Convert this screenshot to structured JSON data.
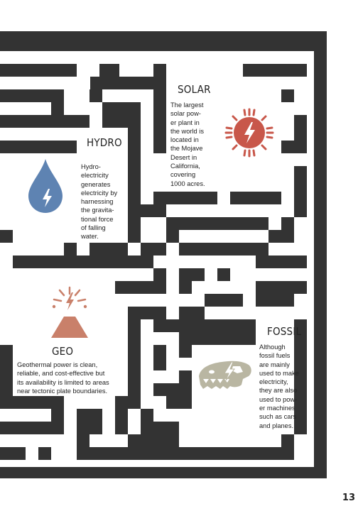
{
  "sections": {
    "solar": {
      "title": "SOLAR",
      "lines": [
        "The largest",
        "solar pow-",
        "er plant in",
        "the world is",
        "located in",
        "the Mojave",
        "Desert in",
        "California,",
        "covering",
        "1000 acres."
      ]
    },
    "hydro": {
      "title": "HYDRO",
      "lines": [
        "Hydro-",
        "electricity",
        "generates",
        "electricity by",
        "harnessing",
        "the gravita-",
        "tional force",
        "of falling",
        "water."
      ]
    },
    "geo": {
      "title": "GEO",
      "lines": [
        "Geothermal power is clean,",
        "reliable, and cost-effective but",
        "its availability is limited to areas",
        "near tectonic plate boundaries."
      ]
    },
    "fossil": {
      "title": "FOSSIL",
      "lines": [
        "Although",
        "fossil fuels",
        "are mainly",
        "used to make",
        "electricity,",
        "they are also",
        "used to pow-",
        "er machines",
        "such as cars",
        "and planes."
      ]
    }
  },
  "page_number": "13",
  "icons": {
    "solar": "sun-lightning-icon",
    "hydro": "water-drop-lightning-icon",
    "geo": "volcano-lightning-icon",
    "fossil": "dinosaur-skull-lightning-icon"
  },
  "colors": {
    "maze": "#333333",
    "solar_icon": "#c8574a",
    "hydro_icon": "#5e83b2",
    "geo_icon": "#c9806a",
    "fossil_icon": "#b9b6a2"
  }
}
